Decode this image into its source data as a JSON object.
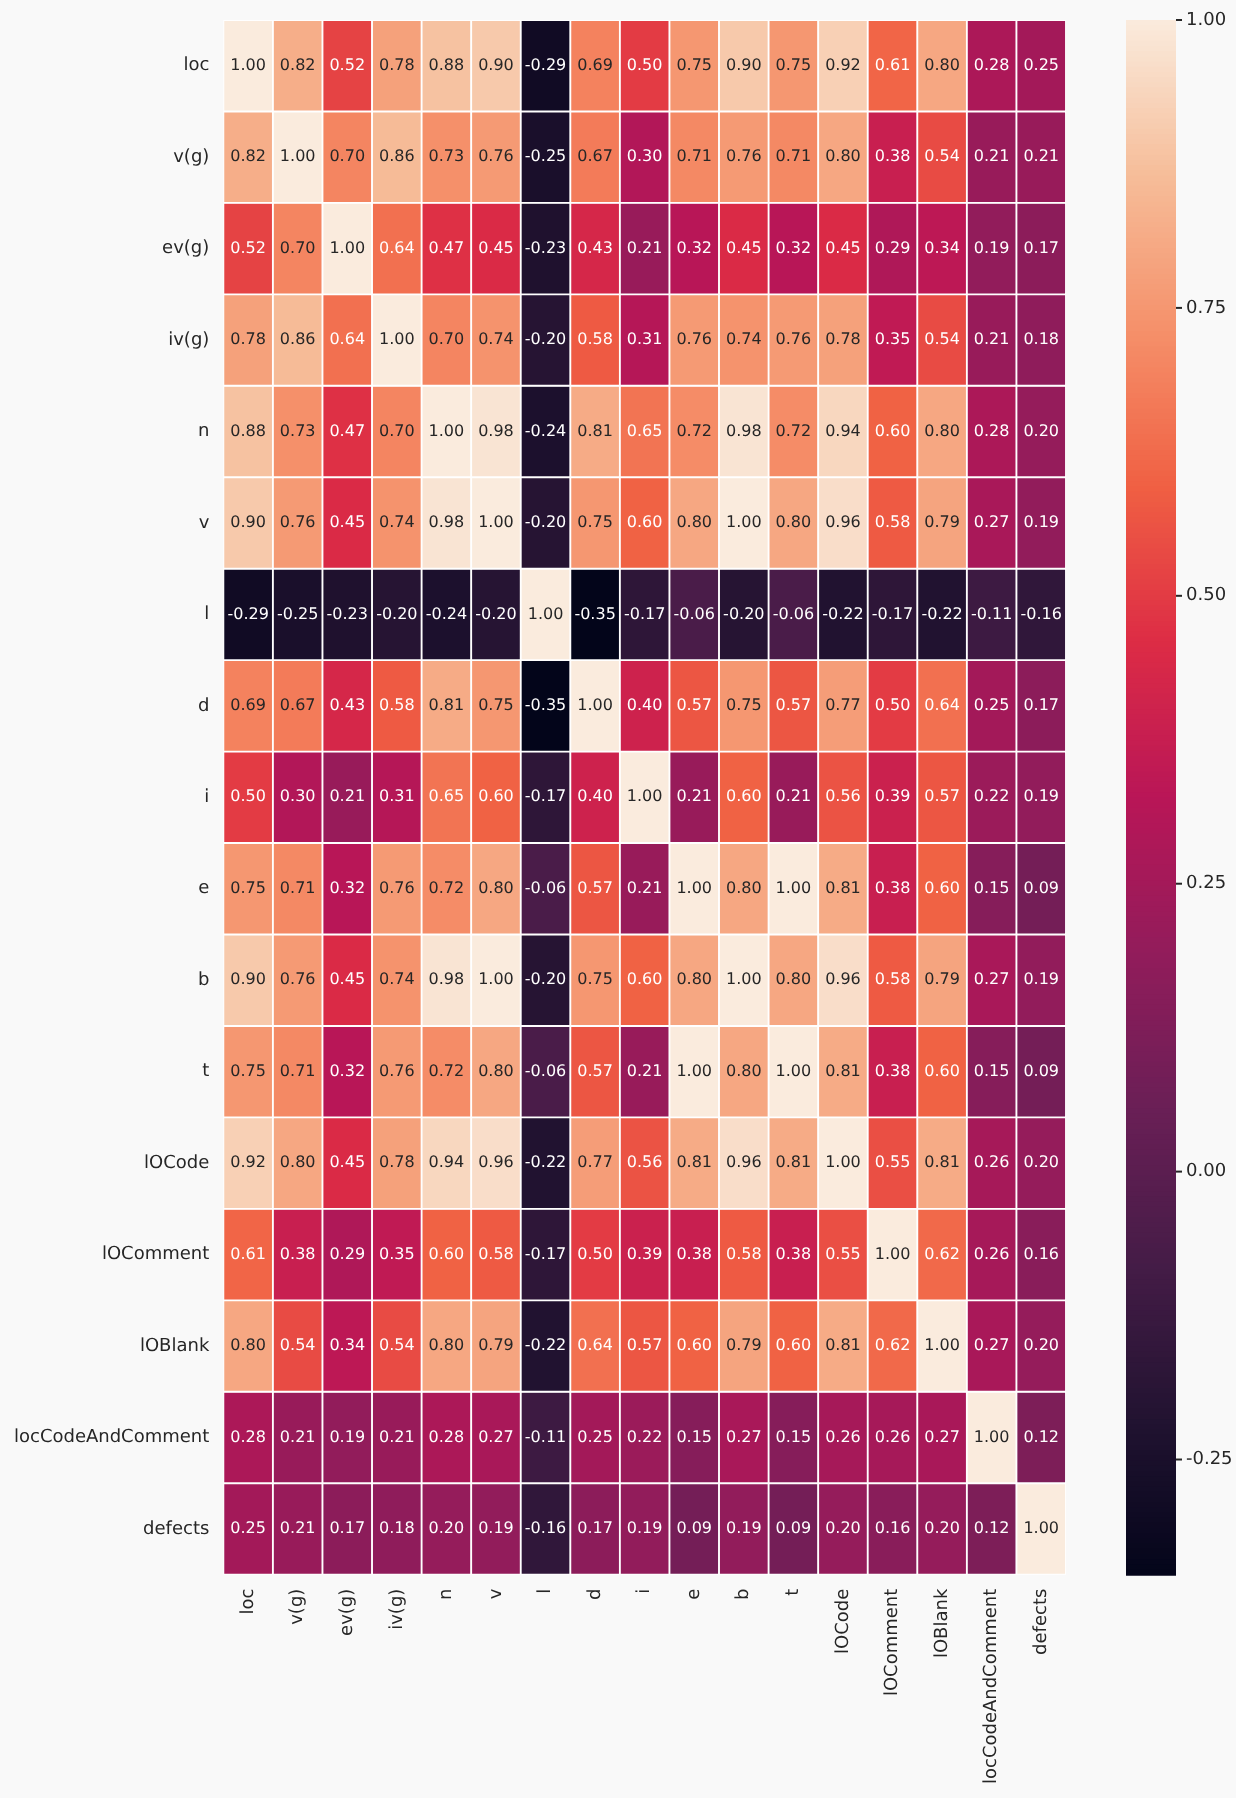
{
  "chart_data": {
    "type": "heatmap",
    "categories": [
      "loc",
      "v(g)",
      "ev(g)",
      "iv(g)",
      "n",
      "v",
      "l",
      "d",
      "i",
      "e",
      "b",
      "t",
      "lOCode",
      "lOComment",
      "lOBlank",
      "locCodeAndComment",
      "defects"
    ],
    "y_categories": [
      "loc",
      "v(g)",
      "ev(g)",
      "iv(g)",
      "n",
      "v",
      "l",
      "d",
      "i",
      "e",
      "b",
      "t",
      "lOCode",
      "lOComment",
      "lOBlank",
      "locCodeAndComment",
      "defects"
    ],
    "cells": [
      [
        1.0,
        0.82,
        0.52,
        0.78,
        0.88,
        0.9,
        -0.29,
        0.69,
        0.5,
        0.75,
        0.9,
        0.75,
        0.92,
        0.61,
        0.8,
        0.28,
        0.25
      ],
      [
        0.82,
        1.0,
        0.7,
        0.86,
        0.73,
        0.76,
        -0.25,
        0.67,
        0.3,
        0.71,
        0.76,
        0.71,
        0.8,
        0.38,
        0.54,
        0.21,
        0.21
      ],
      [
        0.52,
        0.7,
        1.0,
        0.64,
        0.47,
        0.45,
        -0.23,
        0.43,
        0.21,
        0.32,
        0.45,
        0.32,
        0.45,
        0.29,
        0.34,
        0.19,
        0.17
      ],
      [
        0.78,
        0.86,
        0.64,
        1.0,
        0.7,
        0.74,
        -0.2,
        0.58,
        0.31,
        0.76,
        0.74,
        0.76,
        0.78,
        0.35,
        0.54,
        0.21,
        0.18
      ],
      [
        0.88,
        0.73,
        0.47,
        0.7,
        1.0,
        0.98,
        -0.24,
        0.81,
        0.65,
        0.72,
        0.98,
        0.72,
        0.94,
        0.6,
        0.8,
        0.28,
        0.2
      ],
      [
        0.9,
        0.76,
        0.45,
        0.74,
        0.98,
        1.0,
        -0.2,
        0.75,
        0.6,
        0.8,
        1.0,
        0.8,
        0.96,
        0.58,
        0.79,
        0.27,
        0.19
      ],
      [
        -0.29,
        -0.25,
        -0.23,
        -0.2,
        -0.24,
        -0.2,
        1.0,
        -0.35,
        -0.17,
        -0.06,
        -0.2,
        -0.06,
        -0.22,
        -0.17,
        -0.22,
        -0.11,
        -0.16
      ],
      [
        0.69,
        0.67,
        0.43,
        0.58,
        0.81,
        0.75,
        -0.35,
        1.0,
        0.4,
        0.57,
        0.75,
        0.57,
        0.77,
        0.5,
        0.64,
        0.25,
        0.17
      ],
      [
        0.5,
        0.3,
        0.21,
        0.31,
        0.65,
        0.6,
        -0.17,
        0.4,
        1.0,
        0.21,
        0.6,
        0.21,
        0.56,
        0.39,
        0.57,
        0.22,
        0.19
      ],
      [
        0.75,
        0.71,
        0.32,
        0.76,
        0.72,
        0.8,
        -0.06,
        0.57,
        0.21,
        1.0,
        0.8,
        1.0,
        0.81,
        0.38,
        0.6,
        0.15,
        0.09
      ],
      [
        0.9,
        0.76,
        0.45,
        0.74,
        0.98,
        1.0,
        -0.2,
        0.75,
        0.6,
        0.8,
        1.0,
        0.8,
        0.96,
        0.58,
        0.79,
        0.27,
        0.19
      ],
      [
        0.75,
        0.71,
        0.32,
        0.76,
        0.72,
        0.8,
        -0.06,
        0.57,
        0.21,
        1.0,
        0.8,
        1.0,
        0.81,
        0.38,
        0.6,
        0.15,
        0.09
      ],
      [
        0.92,
        0.8,
        0.45,
        0.78,
        0.94,
        0.96,
        -0.22,
        0.77,
        0.56,
        0.81,
        0.96,
        0.81,
        1.0,
        0.55,
        0.81,
        0.26,
        0.2
      ],
      [
        0.61,
        0.38,
        0.29,
        0.35,
        0.6,
        0.58,
        -0.17,
        0.5,
        0.39,
        0.38,
        0.58,
        0.38,
        0.55,
        1.0,
        0.62,
        0.26,
        0.16
      ],
      [
        0.8,
        0.54,
        0.34,
        0.54,
        0.8,
        0.79,
        -0.22,
        0.64,
        0.57,
        0.6,
        0.79,
        0.6,
        0.81,
        0.62,
        1.0,
        0.27,
        0.2
      ],
      [
        0.28,
        0.21,
        0.19,
        0.21,
        0.28,
        0.27,
        -0.11,
        0.25,
        0.22,
        0.15,
        0.27,
        0.15,
        0.26,
        0.26,
        0.27,
        1.0,
        0.12
      ],
      [
        0.25,
        0.21,
        0.17,
        0.18,
        0.2,
        0.19,
        -0.16,
        0.17,
        0.19,
        0.09,
        0.19,
        0.09,
        0.2,
        0.16,
        0.2,
        0.12,
        1.0
      ]
    ],
    "cell_labels": [
      [
        "1.00",
        "0.82",
        "0.52",
        "0.78",
        "0.88",
        "0.90",
        "-0.29",
        "0.69",
        "0.50",
        "0.75",
        "0.90",
        "0.75",
        "0.92",
        "0.61",
        "0.80",
        "0.28",
        "0.25"
      ],
      [
        "0.82",
        "1.00",
        "0.70",
        "0.86",
        "0.73",
        "0.76",
        "-0.25",
        "0.67",
        "0.30",
        "0.71",
        "0.76",
        "0.71",
        "0.80",
        "0.38",
        "0.54",
        "0.21",
        "0.21"
      ],
      [
        "0.52",
        "0.70",
        "1.00",
        "0.64",
        "0.47",
        "0.45",
        "-0.23",
        "0.43",
        "0.21",
        "0.32",
        "0.45",
        "0.32",
        "0.45",
        "0.29",
        "0.34",
        "0.19",
        "0.17"
      ],
      [
        "0.78",
        "0.86",
        "0.64",
        "1.00",
        "0.70",
        "0.74",
        "-0.20",
        "0.58",
        "0.31",
        "0.76",
        "0.74",
        "0.76",
        "0.78",
        "0.35",
        "0.54",
        "0.21",
        "0.18"
      ],
      [
        "0.88",
        "0.73",
        "0.47",
        "0.70",
        "1.00",
        "0.98",
        "-0.24",
        "0.81",
        "0.65",
        "0.72",
        "0.98",
        "0.72",
        "0.94",
        "0.60",
        "0.80",
        "0.28",
        "0.20"
      ],
      [
        "0.90",
        "0.76",
        "0.45",
        "0.74",
        "0.98",
        "1.00",
        "-0.20",
        "0.75",
        "0.60",
        "0.80",
        "1.00",
        "0.80",
        "0.96",
        "0.58",
        "0.79",
        "0.27",
        "0.19"
      ],
      [
        "-0.29",
        "-0.25",
        "-0.23",
        "-0.20",
        "-0.24",
        "-0.20",
        "1.00",
        "-0.35",
        "-0.17",
        "-0.06",
        "-0.20",
        "-0.06",
        "-0.22",
        "-0.17",
        "-0.22",
        "-0.11",
        "-0.16"
      ],
      [
        "0.69",
        "0.67",
        "0.43",
        "0.58",
        "0.81",
        "0.75",
        "-0.35",
        "1.00",
        "0.40",
        "0.57",
        "0.75",
        "0.57",
        "0.77",
        "0.50",
        "0.64",
        "0.25",
        "0.17"
      ],
      [
        "0.50",
        "0.30",
        "0.21",
        "0.31",
        "0.65",
        "0.60",
        "-0.17",
        "0.40",
        "1.00",
        "0.21",
        "0.60",
        "0.21",
        "0.56",
        "0.39",
        "0.57",
        "0.22",
        "0.19"
      ],
      [
        "0.75",
        "0.71",
        "0.32",
        "0.76",
        "0.72",
        "0.80",
        "-0.06",
        "0.57",
        "0.21",
        "1.00",
        "0.80",
        "1.00",
        "0.81",
        "0.38",
        "0.60",
        "0.15",
        "0.09"
      ],
      [
        "0.90",
        "0.76",
        "0.45",
        "0.74",
        "0.98",
        "1.00",
        "-0.20",
        "0.75",
        "0.60",
        "0.80",
        "1.00",
        "0.80",
        "0.96",
        "0.58",
        "0.79",
        "0.27",
        "0.19"
      ],
      [
        "0.75",
        "0.71",
        "0.32",
        "0.76",
        "0.72",
        "0.80",
        "-0.06",
        "0.57",
        "0.21",
        "1.00",
        "0.80",
        "1.00",
        "0.81",
        "0.38",
        "0.60",
        "0.15",
        "0.09"
      ],
      [
        "0.92",
        "0.80",
        "0.45",
        "0.78",
        "0.94",
        "0.96",
        "-0.22",
        "0.77",
        "0.56",
        "0.81",
        "0.96",
        "0.81",
        "1.00",
        "0.55",
        "0.81",
        "0.26",
        "0.20"
      ],
      [
        "0.61",
        "0.38",
        "0.29",
        "0.35",
        "0.60",
        "0.58",
        "-0.17",
        "0.50",
        "0.39",
        "0.38",
        "0.58",
        "0.38",
        "0.55",
        "1.00",
        "0.62",
        "0.26",
        "0.16"
      ],
      [
        "0.80",
        "0.54",
        "0.34",
        "0.54",
        "0.80",
        "0.79",
        "-0.22",
        "0.64",
        "0.57",
        "0.60",
        "0.79",
        "0.60",
        "0.81",
        "0.62",
        "1.00",
        "0.27",
        "0.20"
      ],
      [
        "0.28",
        "0.21",
        "0.19",
        "0.21",
        "0.28",
        "0.27",
        "-0.11",
        "0.25",
        "0.22",
        "0.15",
        "0.27",
        "0.15",
        "0.26",
        "0.26",
        "0.27",
        "1.00",
        "0.12"
      ],
      [
        "0.25",
        "0.21",
        "0.17",
        "0.18",
        "0.20",
        "0.19",
        "-0.16",
        "0.17",
        "0.19",
        "0.09",
        "0.19",
        "0.09",
        "0.20",
        "0.16",
        "0.20",
        "0.12",
        "1.00"
      ]
    ],
    "clim": [
      -0.35,
      1.0
    ],
    "cticks": [
      {
        "value": 1,
        "label": "1.00"
      },
      {
        "value": 0.75,
        "label": "0.75"
      },
      {
        "value": 0.5,
        "label": "0.50"
      },
      {
        "value": 0.25,
        "label": "0.25"
      },
      {
        "value": 0,
        "label": "0.00"
      },
      {
        "value": -0.25,
        "label": "-0.25"
      }
    ]
  }
}
